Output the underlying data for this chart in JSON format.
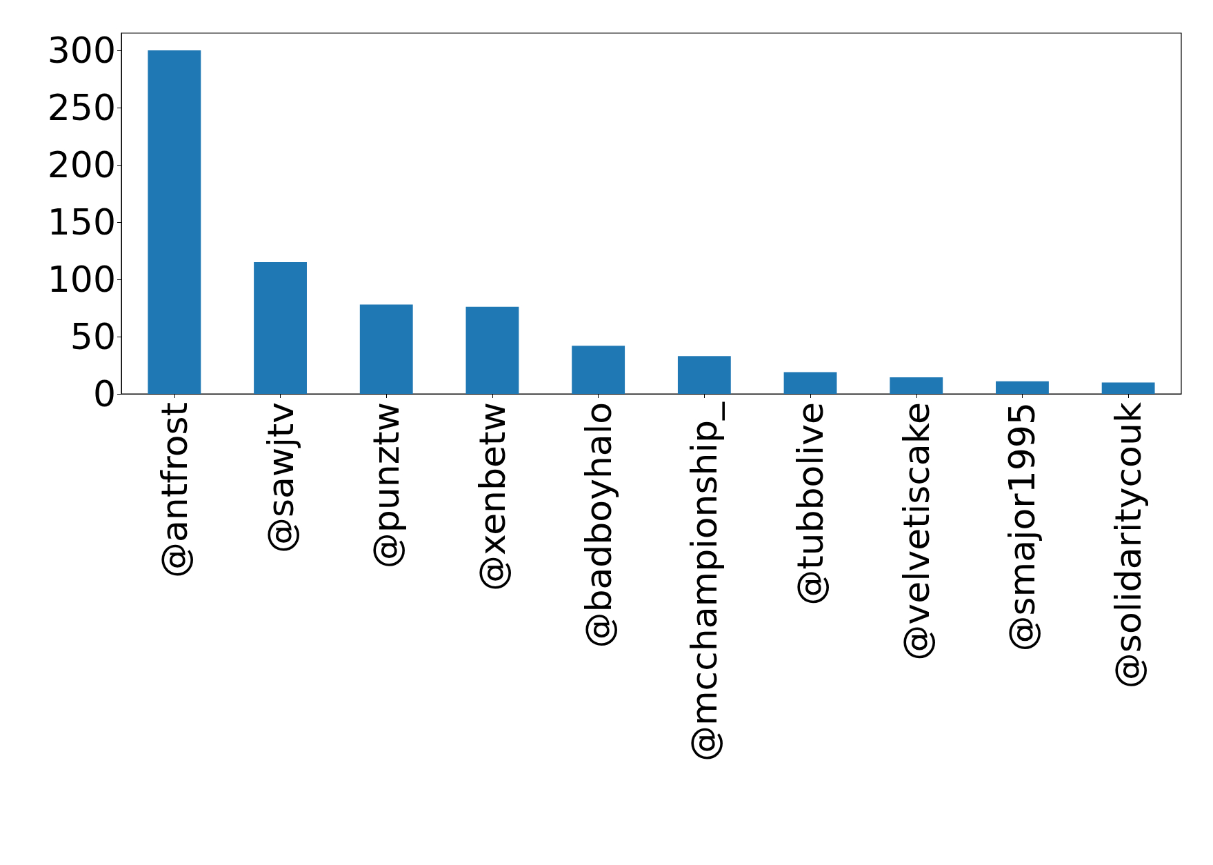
{
  "chart_data": {
    "type": "bar",
    "categories": [
      "@antfrost",
      "@sawjtv",
      "@punztw",
      "@xenbetw",
      "@badboyhalo",
      "@mcchampionship_",
      "@tubbolive",
      "@velvetiscake",
      "@smajor1995",
      "@solidaritycouk"
    ],
    "values": [
      300,
      115,
      78,
      76,
      42,
      33,
      19,
      14.5,
      11,
      10
    ],
    "color": "#1f77b4",
    "ylim": [
      0,
      315
    ],
    "yticks": [
      0,
      50,
      100,
      150,
      200,
      250,
      300
    ],
    "grid": false
  }
}
